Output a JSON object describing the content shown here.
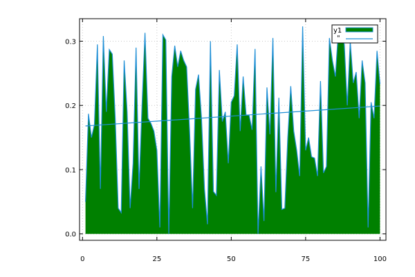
{
  "chart_data": {
    "type": "area",
    "title": "",
    "xlabel": "",
    "ylabel": "",
    "xlim": [
      -1,
      102
    ],
    "ylim": [
      -0.01,
      0.335
    ],
    "x_ticks": [
      0,
      25,
      50,
      75,
      100
    ],
    "x_tick_labels": [
      "0",
      "25",
      "50",
      "75",
      "100"
    ],
    "y_ticks": [
      0.0,
      0.1,
      0.2,
      0.3
    ],
    "y_tick_labels": [
      "0.0",
      "0.1",
      "0.2",
      "0.3"
    ],
    "grid": true,
    "legend_position": "top-right",
    "series": [
      {
        "name": "y1",
        "kind": "area",
        "fill_color": "#008000",
        "stroke_color": "#1f8fd6",
        "x_start": 1,
        "x_step": 1,
        "values": [
          0.05,
          0.187,
          0.15,
          0.17,
          0.295,
          0.07,
          0.308,
          0.19,
          0.287,
          0.28,
          0.18,
          0.04,
          0.033,
          0.27,
          0.19,
          0.04,
          0.11,
          0.29,
          0.07,
          0.2,
          0.313,
          0.18,
          0.172,
          0.16,
          0.13,
          0.01,
          0.31,
          0.302,
          0.0,
          0.245,
          0.293,
          0.26,
          0.285,
          0.27,
          0.26,
          0.16,
          0.04,
          0.225,
          0.248,
          0.18,
          0.07,
          0.015,
          0.3,
          0.066,
          0.06,
          0.255,
          0.175,
          0.19,
          0.11,
          0.205,
          0.215,
          0.295,
          0.16,
          0.245,
          0.185,
          0.185,
          0.162,
          0.288,
          0.0,
          0.105,
          0.02,
          0.228,
          0.155,
          0.305,
          0.065,
          0.212,
          0.038,
          0.04,
          0.15,
          0.23,
          0.16,
          0.13,
          0.09,
          0.323,
          0.13,
          0.15,
          0.12,
          0.118,
          0.09,
          0.238,
          0.095,
          0.105,
          0.305,
          0.27,
          0.245,
          0.315,
          0.31,
          0.295,
          0.2,
          0.3,
          0.235,
          0.252,
          0.18,
          0.27,
          0.235,
          0.01,
          0.205,
          0.18,
          0.285,
          0.233
        ]
      },
      {
        "name": "\"",
        "kind": "line",
        "stroke_color": "#1f8fd6",
        "x": [
          1,
          100
        ],
        "values": [
          0.168,
          0.199
        ]
      }
    ]
  }
}
